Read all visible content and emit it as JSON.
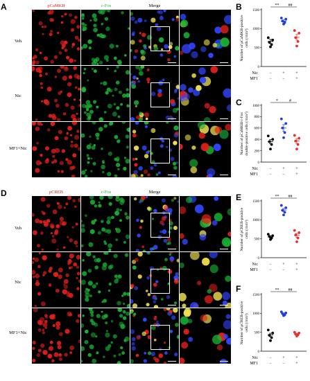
{
  "figure": {
    "panel_letters": [
      "A",
      "B",
      "C",
      "D",
      "E",
      "F"
    ],
    "panel_A": {
      "columns": [
        "pCaMKII",
        "c-Fos",
        "Merge"
      ],
      "rows": [
        "Veh",
        "Nic",
        "MF1+Nic"
      ]
    },
    "panel_D": {
      "columns": [
        "pCREB",
        "c-Fos",
        "Merge"
      ],
      "rows": [
        "Veh",
        "Nic",
        "MF1+Nic"
      ]
    },
    "colors": {
      "red_channel": "#e0201b",
      "green_channel": "#19b034",
      "veh_dots": "#000000",
      "nic_dots": "#1f3fd0",
      "mf1_dots": "#e8302a"
    },
    "treatment_rows": {
      "nic_label": "Nic",
      "mf1_label": "MF1",
      "nic_signs": [
        "−",
        "+",
        "+"
      ],
      "mf1_signs": [
        "−",
        "−",
        "+"
      ]
    }
  },
  "chart_data": [
    {
      "panel": "B",
      "type": "scatter",
      "ylabel_lines": [
        "Number of pCaMKII-positive",
        "cells (/mm²)"
      ],
      "ylim": [
        0,
        1500
      ],
      "yticks": [
        "0",
        "500",
        "1000",
        "1500"
      ],
      "groups": [
        {
          "points": [
            520,
            580,
            640,
            700,
            760
          ],
          "mean": 660,
          "sem": 55
        },
        {
          "points": [
            1120,
            1160,
            1200,
            1250,
            1280
          ],
          "mean": 1200,
          "sem": 30
        },
        {
          "points": [
            540,
            660,
            760,
            880,
            950
          ],
          "mean": 770,
          "sem": 75
        }
      ],
      "sig_left": "**",
      "sig_right": "##"
    },
    {
      "panel": "C",
      "type": "scatter",
      "ylabel_lines": [
        "Number of pCaMKII/c-Fos",
        "double-positive cells (/mm²)"
      ],
      "ylim": [
        0,
        1000
      ],
      "yticks": [
        "0",
        "200",
        "400",
        "600",
        "800",
        "1000"
      ],
      "groups": [
        {
          "points": [
            230,
            310,
            360,
            400,
            460
          ],
          "mean": 360,
          "sem": 38
        },
        {
          "points": [
            430,
            520,
            600,
            680,
            760
          ],
          "mean": 600,
          "sem": 60
        },
        {
          "points": [
            230,
            310,
            370,
            420,
            470
          ],
          "mean": 370,
          "sem": 42
        }
      ],
      "sig_left": "*",
      "sig_right": "#"
    },
    {
      "panel": "E",
      "type": "scatter",
      "ylabel_lines": [
        "Number of pCREB-positive",
        "cells (/mm²)"
      ],
      "ylim": [
        0,
        1500
      ],
      "yticks": [
        "0",
        "500",
        "1000",
        "1500"
      ],
      "groups": [
        {
          "points": [
            480,
            520,
            560,
            580,
            620
          ],
          "mean": 550,
          "sem": 30
        },
        {
          "points": [
            1130,
            1200,
            1250,
            1320,
            1380
          ],
          "mean": 1260,
          "sem": 40
        },
        {
          "points": [
            420,
            520,
            600,
            660,
            720
          ],
          "mean": 590,
          "sem": 48
        }
      ],
      "sig_left": "**",
      "sig_right": "##"
    },
    {
      "panel": "F",
      "type": "scatter",
      "ylabel_lines": [
        "Number of pCREB-positive",
        "cells (/mm²)"
      ],
      "ylim": [
        0,
        1500
      ],
      "yticks": [
        "0",
        "500",
        "1000",
        "1500"
      ],
      "groups": [
        {
          "points": [
            280,
            360,
            420,
            480,
            560
          ],
          "mean": 430,
          "sem": 45
        },
        {
          "points": [
            940,
            960,
            990,
            1010,
            1040
          ],
          "mean": 990,
          "sem": 20
        },
        {
          "points": [
            400,
            430,
            450,
            480,
            500
          ],
          "mean": 450,
          "sem": 18
        }
      ],
      "sig_left": "**",
      "sig_right": "##"
    }
  ]
}
